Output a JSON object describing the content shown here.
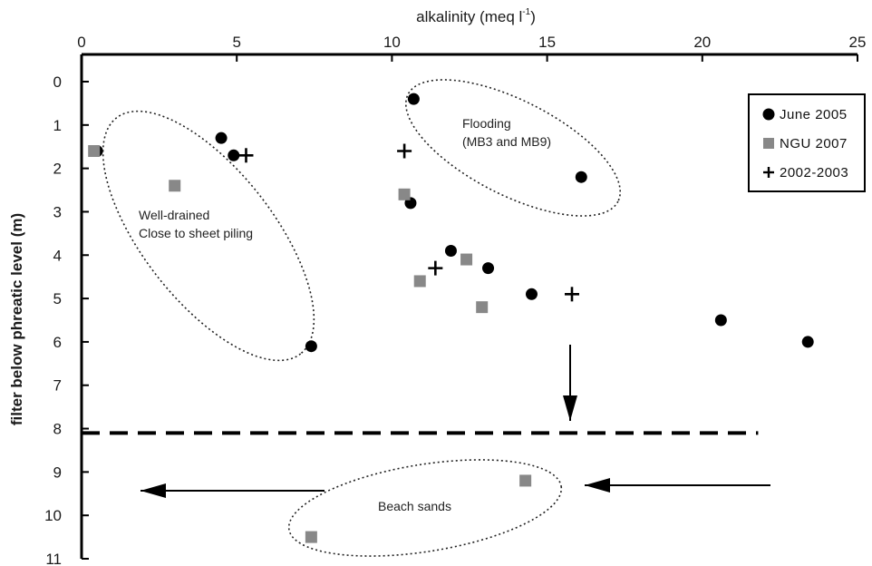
{
  "chart_data": {
    "type": "scatter",
    "title": "",
    "xlabel": "alkalinity (meq l",
    "xlabel_sup": "-1",
    "xlabel_close": ")",
    "ylabel": "filter below phreatic level (m)",
    "xlim": [
      0,
      25
    ],
    "ylim": [
      0,
      11
    ],
    "x_axis_position": "top",
    "y_inverted": true,
    "grid": false,
    "legend_position": "top-right",
    "x_ticks": [
      0,
      5,
      10,
      15,
      20,
      25
    ],
    "y_ticks": [
      0,
      1,
      2,
      3,
      4,
      5,
      6,
      7,
      8,
      9,
      10,
      11
    ],
    "series": [
      {
        "name": "June 2005",
        "marker": "circle",
        "color": "#000000",
        "points": [
          {
            "x": 0.5,
            "y": 1.6
          },
          {
            "x": 4.5,
            "y": 1.3
          },
          {
            "x": 4.9,
            "y": 1.7
          },
          {
            "x": 7.4,
            "y": 6.1
          },
          {
            "x": 10.7,
            "y": 0.4
          },
          {
            "x": 10.6,
            "y": 2.8
          },
          {
            "x": 11.9,
            "y": 3.9
          },
          {
            "x": 13.1,
            "y": 4.3
          },
          {
            "x": 14.5,
            "y": 4.9
          },
          {
            "x": 16.1,
            "y": 2.2
          },
          {
            "x": 20.6,
            "y": 5.5
          },
          {
            "x": 23.4,
            "y": 6.0
          }
        ]
      },
      {
        "name": "NGU 2007",
        "marker": "square",
        "color": "#888888",
        "points": [
          {
            "x": 0.4,
            "y": 1.6
          },
          {
            "x": 3.0,
            "y": 2.4
          },
          {
            "x": 10.4,
            "y": 2.6
          },
          {
            "x": 10.9,
            "y": 4.6
          },
          {
            "x": 12.4,
            "y": 4.1
          },
          {
            "x": 12.9,
            "y": 5.2
          },
          {
            "x": 14.3,
            "y": 9.2
          },
          {
            "x": 7.4,
            "y": 10.5
          }
        ]
      },
      {
        "name": "2002-2003",
        "marker": "plus",
        "color": "#000000",
        "points": [
          {
            "x": 5.3,
            "y": 1.7
          },
          {
            "x": 10.4,
            "y": 1.6
          },
          {
            "x": 11.4,
            "y": 4.3
          },
          {
            "x": 15.8,
            "y": 4.9
          }
        ]
      }
    ],
    "reference_line": {
      "y": 8.1,
      "style": "dashed"
    },
    "annotations": [
      {
        "label": "well-drained",
        "lines": [
          "Well-drained",
          "Close to sheet piling"
        ]
      },
      {
        "label": "flooding",
        "lines": [
          "Flooding",
          "(MB3 and MB9)"
        ]
      },
      {
        "label": "beach-sands",
        "lines": [
          "Beach sands"
        ]
      }
    ]
  }
}
